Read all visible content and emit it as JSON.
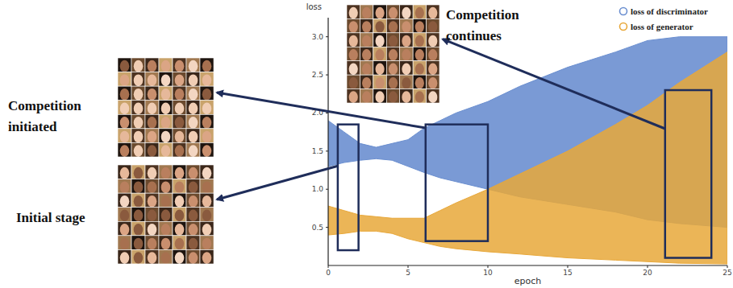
{
  "chart_data": {
    "type": "area",
    "x_label": "epoch",
    "y_label": "loss",
    "x": [
      0,
      1,
      2,
      3,
      4,
      5,
      6,
      7,
      8,
      10,
      12,
      15,
      18,
      20,
      22,
      25
    ],
    "xlim": [
      0,
      25
    ],
    "ylim": [
      0,
      3.25
    ],
    "xticks": [
      0,
      5,
      10,
      15,
      20,
      25
    ],
    "yticks": [
      0.5,
      {
        "value": 1,
        "label": "1.0"
      },
      1.5,
      {
        "value": 2,
        "label": "2.0"
      },
      2.5,
      {
        "value": 3,
        "label": "3.0"
      }
    ],
    "legend": "top-right",
    "marker": "circle",
    "series": [
      {
        "name": "loss of discriminator",
        "color": "#6b8fd0",
        "lower": [
          1.3,
          1.35,
          1.38,
          1.4,
          1.38,
          1.3,
          1.22,
          1.15,
          1.1,
          1.0,
          0.9,
          0.8,
          0.7,
          0.6,
          0.55,
          0.5
        ],
        "upper": [
          1.9,
          1.75,
          1.6,
          1.55,
          1.6,
          1.65,
          1.8,
          1.9,
          2.0,
          2.15,
          2.35,
          2.6,
          2.8,
          2.95,
          3.0,
          3.0
        ]
      },
      {
        "name": "loss of generator",
        "color": "#e8a83a",
        "lower": [
          0.4,
          0.42,
          0.45,
          0.45,
          0.42,
          0.35,
          0.3,
          0.25,
          0.22,
          0.18,
          0.15,
          0.1,
          0.07,
          0.05,
          0.03,
          0.02
        ],
        "upper": [
          0.78,
          0.72,
          0.66,
          0.64,
          0.62,
          0.62,
          0.62,
          0.72,
          0.82,
          1.0,
          1.2,
          1.5,
          1.85,
          2.1,
          2.4,
          2.8
        ]
      }
    ],
    "annotations": [
      {
        "text": "Initial stage",
        "xrange": [
          0.6,
          1.9
        ],
        "yrange": [
          0.2,
          1.85
        ]
      },
      {
        "text": "Competition initiated",
        "xrange": [
          6.1,
          10
        ],
        "yrange": [
          0.32,
          1.85
        ]
      },
      {
        "text": "Competition continues",
        "xrange": [
          21.1,
          24
        ],
        "yrange": [
          0.1,
          2.3
        ]
      }
    ]
  }
}
